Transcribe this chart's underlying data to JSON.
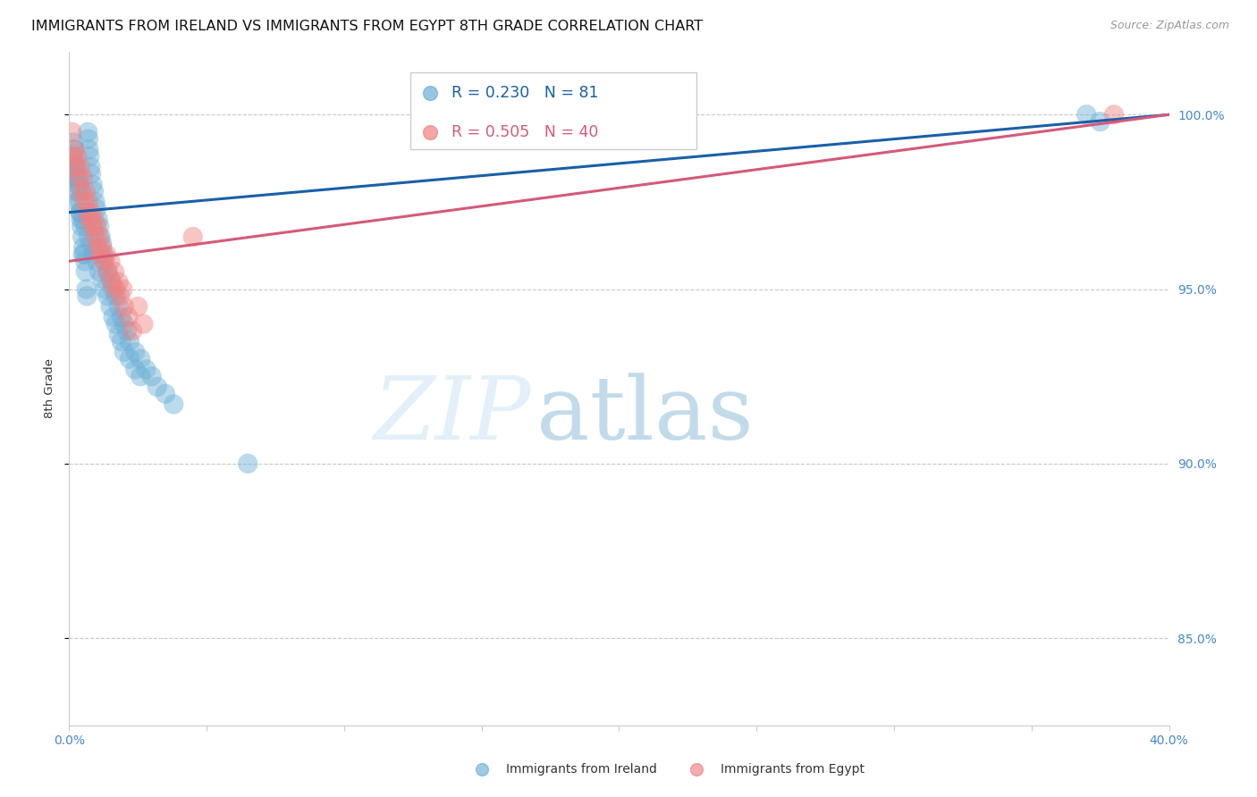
{
  "title": "IMMIGRANTS FROM IRELAND VS IMMIGRANTS FROM EGYPT 8TH GRADE CORRELATION CHART",
  "source": "Source: ZipAtlas.com",
  "ylabel_left": "8th Grade",
  "x_min": 0.0,
  "x_max": 40.0,
  "y_min": 82.5,
  "y_max": 101.8,
  "y_ticks": [
    85.0,
    90.0,
    95.0,
    100.0
  ],
  "legend1_label": "Immigrants from Ireland",
  "legend2_label": "Immigrants from Egypt",
  "r_ireland": 0.23,
  "n_ireland": 81,
  "r_egypt": 0.505,
  "n_egypt": 40,
  "ireland_color": "#6aaed6",
  "egypt_color": "#f08080",
  "ireland_line_color": "#1a5fa8",
  "egypt_line_color": "#d45a78",
  "background_color": "#ffffff",
  "grid_color": "#c8c8c8",
  "axis_color": "#4488cc",
  "ireland_line_x0": 0.0,
  "ireland_line_y0": 97.2,
  "ireland_line_x1": 40.0,
  "ireland_line_y1": 100.0,
  "egypt_line_x0": 0.0,
  "egypt_line_y0": 95.8,
  "egypt_line_x1": 40.0,
  "egypt_line_y1": 100.0,
  "ireland_x": [
    0.08,
    0.12,
    0.15,
    0.18,
    0.2,
    0.22,
    0.25,
    0.28,
    0.3,
    0.33,
    0.35,
    0.38,
    0.4,
    0.43,
    0.45,
    0.48,
    0.5,
    0.52,
    0.55,
    0.58,
    0.6,
    0.63,
    0.65,
    0.68,
    0.7,
    0.72,
    0.75,
    0.78,
    0.8,
    0.85,
    0.9,
    0.95,
    1.0,
    1.05,
    1.1,
    1.15,
    1.2,
    1.25,
    1.3,
    1.4,
    1.5,
    1.6,
    1.7,
    1.8,
    1.9,
    2.0,
    2.1,
    2.2,
    2.4,
    2.6,
    2.8,
    3.0,
    3.2,
    3.5,
    3.8,
    0.1,
    0.2,
    0.3,
    0.4,
    0.5,
    0.6,
    0.7,
    0.8,
    0.9,
    1.0,
    1.1,
    1.2,
    1.3,
    1.4,
    1.5,
    1.6,
    1.7,
    1.8,
    1.9,
    2.0,
    2.2,
    2.4,
    2.6,
    37.0,
    37.5,
    6.5
  ],
  "ireland_y": [
    98.5,
    98.8,
    99.2,
    99.0,
    98.6,
    98.3,
    98.5,
    98.2,
    98.0,
    97.8,
    98.0,
    97.5,
    97.2,
    97.0,
    96.8,
    96.5,
    96.0,
    96.2,
    96.0,
    95.8,
    95.5,
    95.0,
    94.8,
    99.5,
    99.3,
    99.0,
    98.8,
    98.5,
    98.3,
    98.0,
    97.8,
    97.5,
    97.3,
    97.0,
    96.8,
    96.5,
    96.3,
    96.0,
    95.8,
    95.5,
    95.3,
    95.0,
    94.8,
    94.5,
    94.2,
    94.0,
    93.8,
    93.5,
    93.2,
    93.0,
    92.7,
    92.5,
    92.2,
    92.0,
    91.7,
    98.2,
    97.8,
    97.5,
    97.2,
    97.0,
    96.8,
    96.5,
    96.3,
    96.0,
    95.8,
    95.5,
    95.3,
    95.0,
    94.8,
    94.5,
    94.2,
    94.0,
    93.7,
    93.5,
    93.2,
    93.0,
    92.7,
    92.5,
    100.0,
    99.8,
    90.0
  ],
  "egypt_x": [
    0.1,
    0.2,
    0.3,
    0.4,
    0.5,
    0.6,
    0.7,
    0.8,
    0.9,
    1.0,
    1.1,
    1.2,
    1.35,
    1.5,
    1.65,
    1.8,
    1.95,
    0.15,
    0.25,
    0.35,
    0.45,
    0.55,
    0.65,
    0.75,
    0.85,
    0.95,
    1.05,
    1.15,
    1.25,
    1.4,
    1.55,
    1.7,
    1.85,
    2.0,
    2.15,
    2.3,
    2.5,
    2.7,
    38.0,
    4.5
  ],
  "egypt_y": [
    99.5,
    99.0,
    98.8,
    98.5,
    98.2,
    97.8,
    97.5,
    97.2,
    97.0,
    96.8,
    96.5,
    96.2,
    96.0,
    95.8,
    95.5,
    95.2,
    95.0,
    98.8,
    98.5,
    98.2,
    97.8,
    97.5,
    97.2,
    97.0,
    96.8,
    96.5,
    96.2,
    96.0,
    95.8,
    95.5,
    95.2,
    95.0,
    94.8,
    94.5,
    94.2,
    93.8,
    94.5,
    94.0,
    100.0,
    96.5
  ]
}
